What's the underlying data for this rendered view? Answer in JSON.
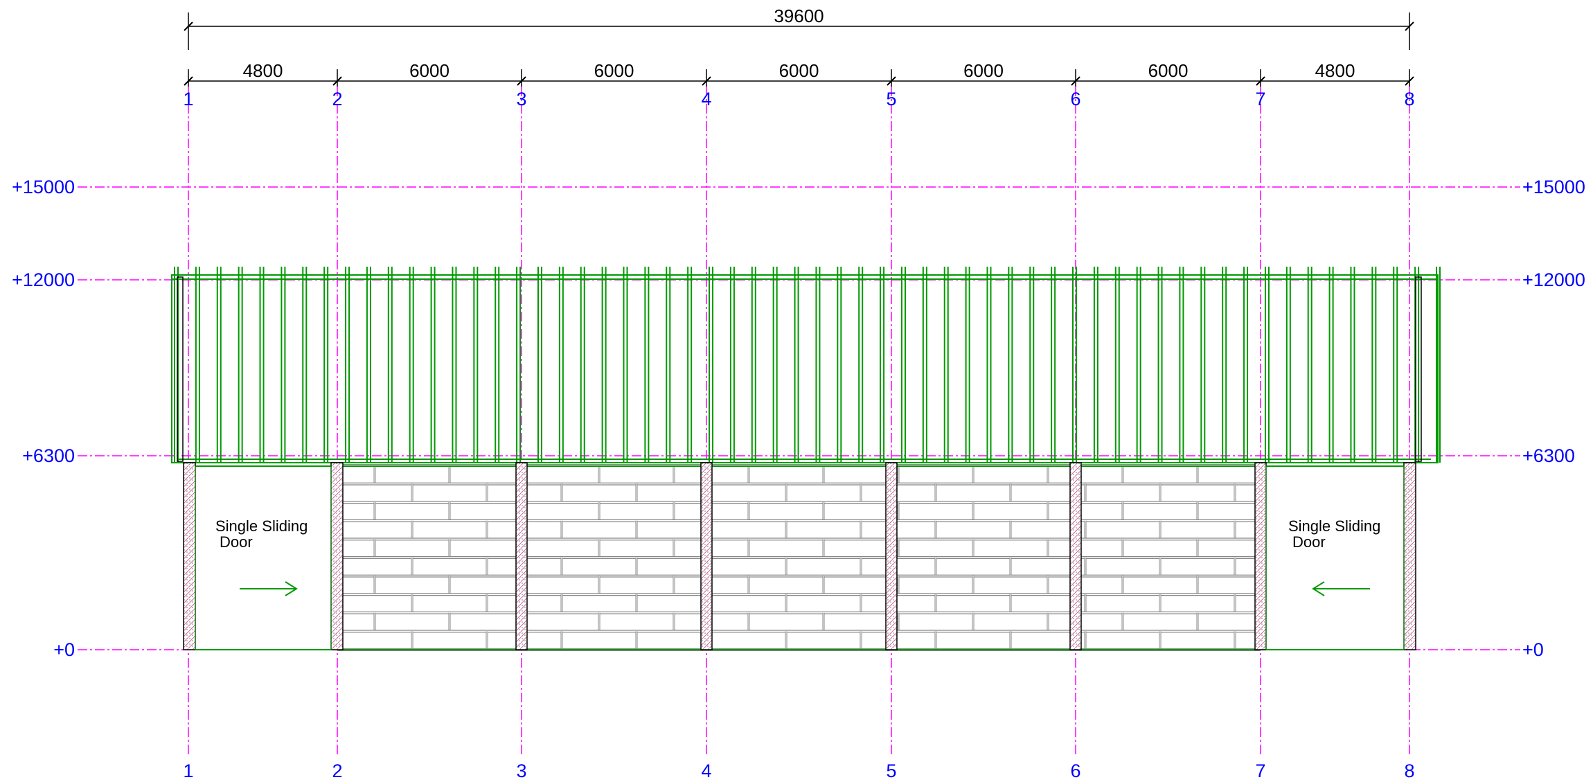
{
  "elevation": {
    "overall_dimension": "39600",
    "bay_dimensions": [
      "4800",
      "6000",
      "6000",
      "6000",
      "6000",
      "6000",
      "4800"
    ],
    "grid_axes": [
      "1",
      "2",
      "3",
      "4",
      "5",
      "6",
      "7",
      "8"
    ],
    "levels": [
      "+15000",
      "+12000",
      "+6300",
      "+0"
    ],
    "door_notes": [
      {
        "line1": "Single Sliding",
        "line2": "Door",
        "arrow_direction": "right"
      },
      {
        "line1": "Single Sliding",
        "line2": "Door",
        "arrow_direction": "left"
      }
    ],
    "colors": {
      "grid_lines": "#ff00ff",
      "labels": "#0000ff",
      "cladding": "#009900",
      "structure": "#000000",
      "brick": "#888888",
      "column_hatch": "#cc6699"
    }
  }
}
